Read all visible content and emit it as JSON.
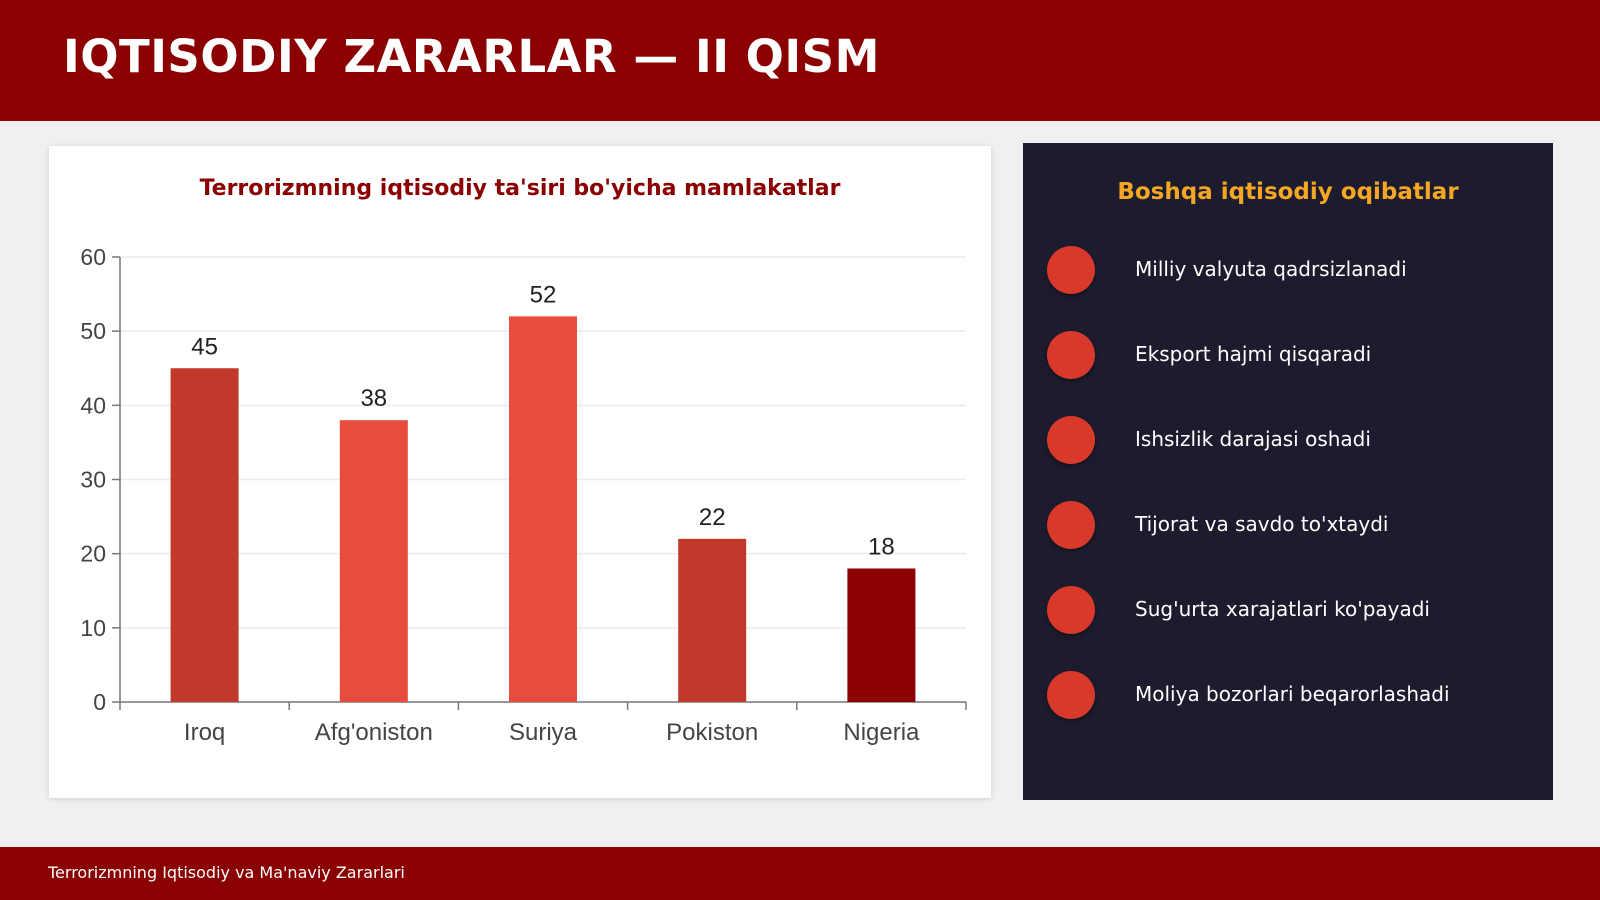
{
  "header": {
    "title": "IQTISODIY ZARARLAR — II QISM"
  },
  "chart_data": {
    "type": "bar",
    "title": "Terrorizmning iqtisodiy ta'siri bo'yicha mamlakatlar",
    "categories": [
      "Iroq",
      "Afg'oniston",
      "Suriya",
      "Pokiston",
      "Nigeria"
    ],
    "values": [
      45,
      38,
      52,
      22,
      18
    ],
    "colors": [
      "#c0392b",
      "#e74c3c",
      "#e74c3c",
      "#c0392b",
      "#8b0000"
    ],
    "ylim": [
      0,
      60
    ],
    "yticks": [
      0,
      10,
      20,
      30,
      40,
      50,
      60
    ],
    "grid": true,
    "xlabel": "",
    "ylabel": ""
  },
  "side_panel": {
    "title": "Boshqa iqtisodiy oqibatlar",
    "items": [
      {
        "label": "Milliy valyuta qadrsizlanadi"
      },
      {
        "label": "Eksport hajmi qisqaradi"
      },
      {
        "label": "Ishsizlik darajasi oshadi"
      },
      {
        "label": "Tijorat va savdo to'xtaydi"
      },
      {
        "label": "Sug'urta xarajatlari ko'payadi"
      },
      {
        "label": "Moliya bozorlari beqarorlashadi"
      }
    ]
  },
  "footer": {
    "text": "Terrorizmning Iqtisodiy va Ma'naviy Zararlari"
  },
  "colors": {
    "brand": "#8b0000",
    "panel_bg": "#1c1c2e",
    "accent": "#f5a623",
    "bullet": "#d9392b"
  }
}
